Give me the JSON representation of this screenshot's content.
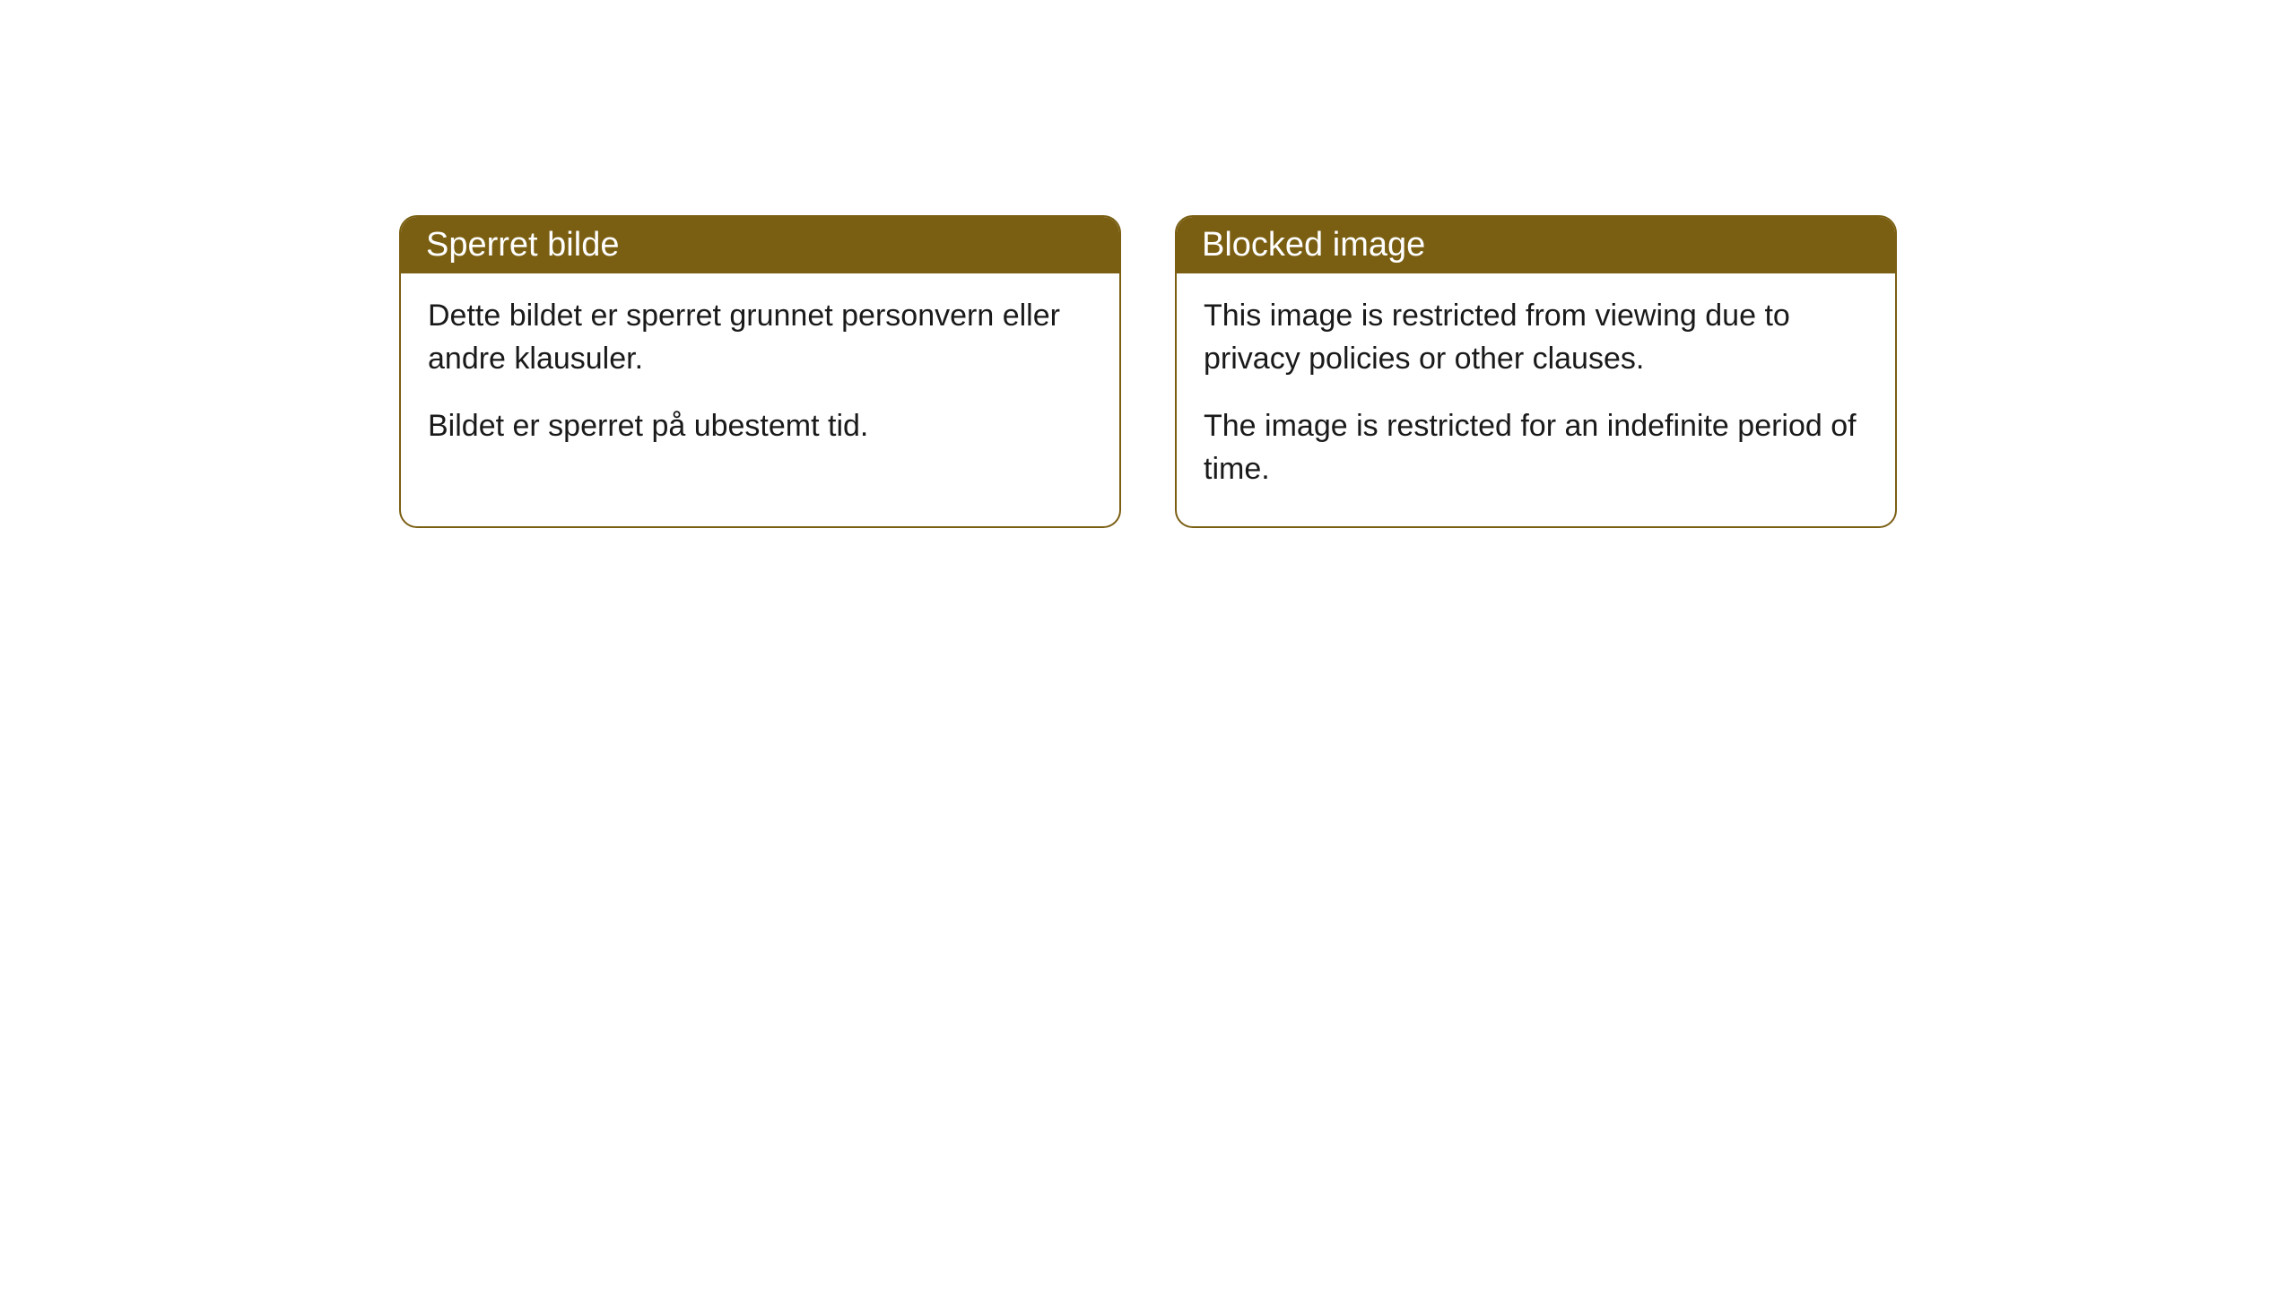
{
  "cards": [
    {
      "title": "Sperret bilde",
      "paragraph1": "Dette bildet er sperret grunnet personvern eller andre klausuler.",
      "paragraph2": "Bildet er sperret på ubestemt tid."
    },
    {
      "title": "Blocked image",
      "paragraph1": "This image is restricted from viewing due to privacy policies or other clauses.",
      "paragraph2": "The image is restricted for an indefinite period of time."
    }
  ],
  "styling": {
    "header_bg_color": "#7a5f13",
    "header_text_color": "#ffffff",
    "border_color": "#7a5f13",
    "body_bg_color": "#ffffff",
    "body_text_color": "#1a1a1a",
    "border_radius": 20,
    "title_fontsize": 38,
    "body_fontsize": 34
  }
}
